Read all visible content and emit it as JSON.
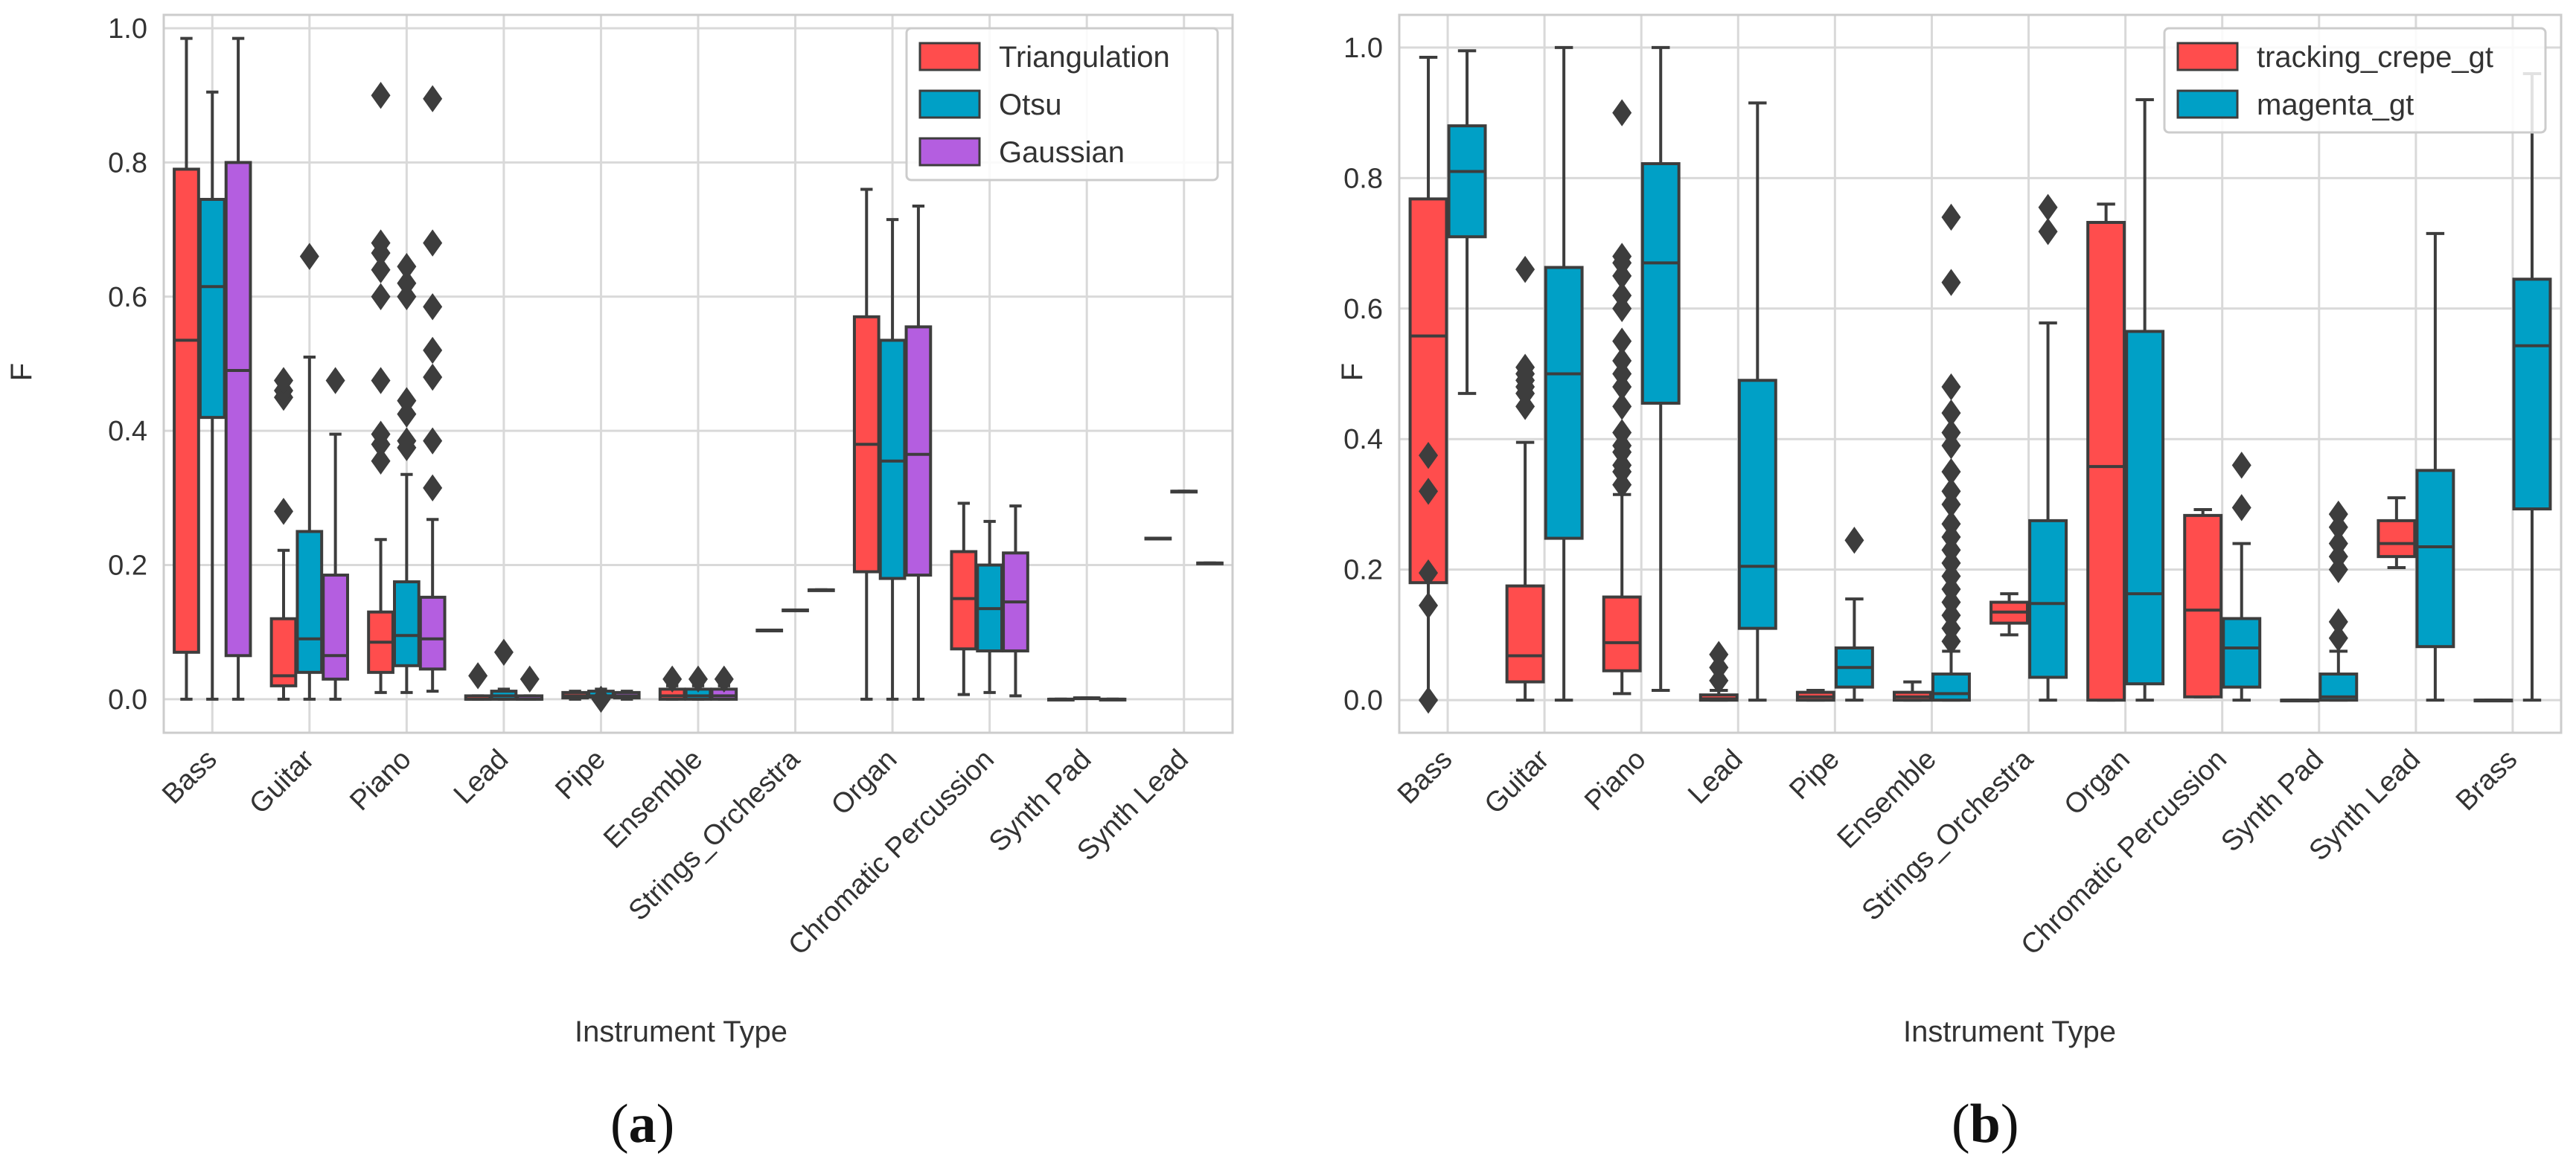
{
  "chart_data": [
    {
      "type": "box",
      "panel_label": "a",
      "xlabel": "Instrument Type",
      "ylabel": "F",
      "ylim": [
        -0.05,
        1.02
      ],
      "yticks": [
        0.0,
        0.2,
        0.4,
        0.6,
        0.8,
        1.0
      ],
      "ytick_labels": [
        "0.0",
        "0.2",
        "0.4",
        "0.6",
        "0.8",
        "1.0"
      ],
      "grid": true,
      "legend_position": "top-right",
      "categories": [
        "Bass",
        "Guitar",
        "Piano",
        "Lead",
        "Pipe",
        "Ensemble",
        "Strings_Orchestra",
        "Organ",
        "Chromatic Percussion",
        "Synth Pad",
        "Synth Lead"
      ],
      "series": [
        {
          "name": "Triangulation",
          "color": "#ff4d4d",
          "boxes": [
            {
              "q1": 0.07,
              "median": 0.535,
              "q3": 0.79,
              "whisker_low": 0.0,
              "whisker_high": 0.985,
              "outliers": []
            },
            {
              "q1": 0.02,
              "median": 0.035,
              "q3": 0.12,
              "whisker_low": 0.0,
              "whisker_high": 0.222,
              "outliers": [
                0.28,
                0.45,
                0.46,
                0.475
              ]
            },
            {
              "q1": 0.04,
              "median": 0.085,
              "q3": 0.13,
              "whisker_low": 0.01,
              "whisker_high": 0.238,
              "outliers": [
                0.355,
                0.38,
                0.395,
                0.475,
                0.6,
                0.64,
                0.665,
                0.68,
                0.9
              ]
            },
            {
              "q1": 0.0,
              "median": 0.0,
              "q3": 0.005,
              "whisker_low": 0.0,
              "whisker_high": 0.005,
              "outliers": [
                0.035
              ]
            },
            {
              "q1": 0.002,
              "median": 0.005,
              "q3": 0.01,
              "whisker_low": 0.0,
              "whisker_high": 0.012,
              "outliers": []
            },
            {
              "q1": 0.0,
              "median": 0.005,
              "q3": 0.015,
              "whisker_low": 0.0,
              "whisker_high": 0.02,
              "outliers": [
                0.03
              ]
            },
            {
              "q1": 0.103,
              "median": 0.103,
              "q3": 0.103,
              "whisker_low": 0.103,
              "whisker_high": 0.103,
              "outliers": []
            },
            {
              "q1": 0.19,
              "median": 0.38,
              "q3": 0.57,
              "whisker_low": 0.0,
              "whisker_high": 0.76,
              "outliers": []
            },
            {
              "q1": 0.075,
              "median": 0.15,
              "q3": 0.22,
              "whisker_low": 0.007,
              "whisker_high": 0.292,
              "outliers": []
            },
            {
              "q1": 0.0,
              "median": 0.0,
              "q3": 0.0,
              "whisker_low": 0.0,
              "whisker_high": 0.0,
              "outliers": []
            },
            {
              "q1": 0.24,
              "median": 0.24,
              "q3": 0.24,
              "whisker_low": 0.24,
              "whisker_high": 0.24,
              "outliers": []
            }
          ]
        },
        {
          "name": "Otsu",
          "color": "#00a0c6",
          "boxes": [
            {
              "q1": 0.42,
              "median": 0.615,
              "q3": 0.745,
              "whisker_low": 0.0,
              "whisker_high": 0.905,
              "outliers": []
            },
            {
              "q1": 0.04,
              "median": 0.09,
              "q3": 0.25,
              "whisker_low": 0.0,
              "whisker_high": 0.51,
              "outliers": [
                0.66
              ]
            },
            {
              "q1": 0.05,
              "median": 0.095,
              "q3": 0.175,
              "whisker_low": 0.01,
              "whisker_high": 0.335,
              "outliers": [
                0.375,
                0.385,
                0.425,
                0.445,
                0.6,
                0.62,
                0.645
              ]
            },
            {
              "q1": 0.0,
              "median": 0.005,
              "q3": 0.012,
              "whisker_low": 0.0,
              "whisker_high": 0.015,
              "outliers": [
                0.07
              ]
            },
            {
              "q1": 0.003,
              "median": 0.005,
              "q3": 0.012,
              "whisker_low": 0.0,
              "whisker_high": 0.015,
              "outliers": [
                0.0
              ]
            },
            {
              "q1": 0.0,
              "median": 0.005,
              "q3": 0.015,
              "whisker_low": 0.0,
              "whisker_high": 0.02,
              "outliers": [
                0.03
              ]
            },
            {
              "q1": 0.133,
              "median": 0.133,
              "q3": 0.133,
              "whisker_low": 0.133,
              "whisker_high": 0.133,
              "outliers": []
            },
            {
              "q1": 0.18,
              "median": 0.355,
              "q3": 0.535,
              "whisker_low": 0.0,
              "whisker_high": 0.715,
              "outliers": []
            },
            {
              "q1": 0.072,
              "median": 0.135,
              "q3": 0.2,
              "whisker_low": 0.01,
              "whisker_high": 0.265,
              "outliers": []
            },
            {
              "q1": 0.002,
              "median": 0.002,
              "q3": 0.002,
              "whisker_low": 0.002,
              "whisker_high": 0.002,
              "outliers": []
            },
            {
              "q1": 0.31,
              "median": 0.31,
              "q3": 0.31,
              "whisker_low": 0.31,
              "whisker_high": 0.31,
              "outliers": []
            }
          ]
        },
        {
          "name": "Gaussian",
          "color": "#b45ee0",
          "boxes": [
            {
              "q1": 0.065,
              "median": 0.49,
              "q3": 0.8,
              "whisker_low": 0.0,
              "whisker_high": 0.985,
              "outliers": []
            },
            {
              "q1": 0.03,
              "median": 0.065,
              "q3": 0.185,
              "whisker_low": 0.0,
              "whisker_high": 0.395,
              "outliers": [
                0.475
              ]
            },
            {
              "q1": 0.045,
              "median": 0.09,
              "q3": 0.152,
              "whisker_low": 0.012,
              "whisker_high": 0.268,
              "outliers": [
                0.315,
                0.385,
                0.48,
                0.52,
                0.585,
                0.68,
                0.895
              ]
            },
            {
              "q1": 0.0,
              "median": 0.0,
              "q3": 0.005,
              "whisker_low": 0.0,
              "whisker_high": 0.005,
              "outliers": [
                0.03
              ]
            },
            {
              "q1": 0.002,
              "median": 0.005,
              "q3": 0.01,
              "whisker_low": 0.0,
              "whisker_high": 0.012,
              "outliers": []
            },
            {
              "q1": 0.0,
              "median": 0.005,
              "q3": 0.015,
              "whisker_low": 0.0,
              "whisker_high": 0.02,
              "outliers": [
                0.03
              ]
            },
            {
              "q1": 0.163,
              "median": 0.163,
              "q3": 0.163,
              "whisker_low": 0.163,
              "whisker_high": 0.163,
              "outliers": []
            },
            {
              "q1": 0.185,
              "median": 0.365,
              "q3": 0.555,
              "whisker_low": 0.0,
              "whisker_high": 0.735,
              "outliers": []
            },
            {
              "q1": 0.072,
              "median": 0.145,
              "q3": 0.218,
              "whisker_low": 0.005,
              "whisker_high": 0.288,
              "outliers": []
            },
            {
              "q1": 0.0,
              "median": 0.0,
              "q3": 0.0,
              "whisker_low": 0.0,
              "whisker_high": 0.0,
              "outliers": []
            },
            {
              "q1": 0.203,
              "median": 0.203,
              "q3": 0.203,
              "whisker_low": 0.203,
              "whisker_high": 0.203,
              "outliers": []
            }
          ]
        }
      ]
    },
    {
      "type": "box",
      "panel_label": "b",
      "xlabel": "Instrument Type",
      "ylabel": "F",
      "ylim": [
        -0.05,
        1.05
      ],
      "yticks": [
        0.0,
        0.2,
        0.4,
        0.6,
        0.8,
        1.0
      ],
      "ytick_labels": [
        "0.0",
        "0.2",
        "0.4",
        "0.6",
        "0.8",
        "1.0"
      ],
      "grid": true,
      "legend_position": "top-right",
      "categories": [
        "Bass",
        "Guitar",
        "Piano",
        "Lead",
        "Pipe",
        "Ensemble",
        "Strings_Orchestra",
        "Organ",
        "Chromatic Percussion",
        "Synth Pad",
        "Synth Lead",
        "Brass"
      ],
      "series": [
        {
          "name": "tracking_crepe_gt",
          "color": "#ff4d4d",
          "boxes": [
            {
              "q1": 0.18,
              "median": 0.558,
              "q3": 0.768,
              "whisker_low": 0.0,
              "whisker_high": 0.985,
              "outliers": [
                0.0,
                0.145,
                0.195,
                0.32,
                0.375
              ]
            },
            {
              "q1": 0.028,
              "median": 0.068,
              "q3": 0.175,
              "whisker_low": 0.0,
              "whisker_high": 0.395,
              "outliers": [
                0.45,
                0.47,
                0.48,
                0.49,
                0.5,
                0.51,
                0.66
              ]
            },
            {
              "q1": 0.045,
              "median": 0.088,
              "q3": 0.158,
              "whisker_low": 0.01,
              "whisker_high": 0.315,
              "outliers": [
                0.33,
                0.35,
                0.36,
                0.38,
                0.39,
                0.41,
                0.45,
                0.48,
                0.5,
                0.52,
                0.55,
                0.6,
                0.62,
                0.65,
                0.67,
                0.68,
                0.9
              ]
            },
            {
              "q1": 0.0,
              "median": 0.002,
              "q3": 0.008,
              "whisker_low": 0.0,
              "whisker_high": 0.015,
              "outliers": [
                0.03,
                0.05,
                0.07
              ]
            },
            {
              "q1": 0.0,
              "median": 0.005,
              "q3": 0.012,
              "whisker_low": 0.0,
              "whisker_high": 0.015,
              "outliers": []
            },
            {
              "q1": 0.0,
              "median": 0.005,
              "q3": 0.012,
              "whisker_low": 0.0,
              "whisker_high": 0.028,
              "outliers": []
            },
            {
              "q1": 0.118,
              "median": 0.135,
              "q3": 0.15,
              "whisker_low": 0.1,
              "whisker_high": 0.163,
              "outliers": []
            },
            {
              "q1": 0.0,
              "median": 0.358,
              "q3": 0.732,
              "whisker_low": 0.0,
              "whisker_high": 0.76,
              "outliers": []
            },
            {
              "q1": 0.005,
              "median": 0.138,
              "q3": 0.283,
              "whisker_low": 0.005,
              "whisker_high": 0.292,
              "outliers": []
            },
            {
              "q1": 0.0,
              "median": 0.0,
              "q3": 0.0,
              "whisker_low": 0.0,
              "whisker_high": 0.0,
              "outliers": []
            },
            {
              "q1": 0.22,
              "median": 0.24,
              "q3": 0.275,
              "whisker_low": 0.203,
              "whisker_high": 0.31,
              "outliers": []
            },
            {
              "q1": 0.0,
              "median": 0.0,
              "q3": 0.0,
              "whisker_low": 0.0,
              "whisker_high": 0.0,
              "outliers": []
            }
          ]
        },
        {
          "name": "magenta_gt",
          "color": "#00a0c6",
          "boxes": [
            {
              "q1": 0.71,
              "median": 0.81,
              "q3": 0.88,
              "whisker_low": 0.47,
              "whisker_high": 0.995,
              "outliers": []
            },
            {
              "q1": 0.248,
              "median": 0.5,
              "q3": 0.663,
              "whisker_low": 0.0,
              "whisker_high": 1.0,
              "outliers": []
            },
            {
              "q1": 0.455,
              "median": 0.67,
              "q3": 0.822,
              "whisker_low": 0.015,
              "whisker_high": 1.0,
              "outliers": []
            },
            {
              "q1": 0.11,
              "median": 0.205,
              "q3": 0.49,
              "whisker_low": 0.0,
              "whisker_high": 0.915,
              "outliers": []
            },
            {
              "q1": 0.02,
              "median": 0.05,
              "q3": 0.08,
              "whisker_low": 0.0,
              "whisker_high": 0.155,
              "outliers": [
                0.245
              ]
            },
            {
              "q1": 0.0,
              "median": 0.01,
              "q3": 0.04,
              "whisker_low": 0.0,
              "whisker_high": 0.075,
              "outliers": [
                0.09,
                0.11,
                0.13,
                0.15,
                0.17,
                0.19,
                0.21,
                0.23,
                0.25,
                0.27,
                0.3,
                0.32,
                0.35,
                0.39,
                0.41,
                0.44,
                0.48,
                0.64,
                0.74
              ]
            },
            {
              "q1": 0.035,
              "median": 0.148,
              "q3": 0.275,
              "whisker_low": 0.0,
              "whisker_high": 0.578,
              "outliers": [
                0.718,
                0.755
              ]
            },
            {
              "q1": 0.025,
              "median": 0.163,
              "q3": 0.565,
              "whisker_low": 0.0,
              "whisker_high": 0.92,
              "outliers": []
            },
            {
              "q1": 0.02,
              "median": 0.08,
              "q3": 0.125,
              "whisker_low": 0.0,
              "whisker_high": 0.24,
              "outliers": [
                0.295,
                0.36
              ]
            },
            {
              "q1": 0.0,
              "median": 0.005,
              "q3": 0.04,
              "whisker_low": 0.0,
              "whisker_high": 0.075,
              "outliers": [
                0.095,
                0.12,
                0.2,
                0.22,
                0.24,
                0.265,
                0.285
              ]
            },
            {
              "q1": 0.082,
              "median": 0.235,
              "q3": 0.352,
              "whisker_low": 0.0,
              "whisker_high": 0.715,
              "outliers": []
            },
            {
              "q1": 0.293,
              "median": 0.543,
              "q3": 0.645,
              "whisker_low": 0.0,
              "whisker_high": 0.96,
              "outliers": []
            }
          ]
        }
      ]
    }
  ]
}
